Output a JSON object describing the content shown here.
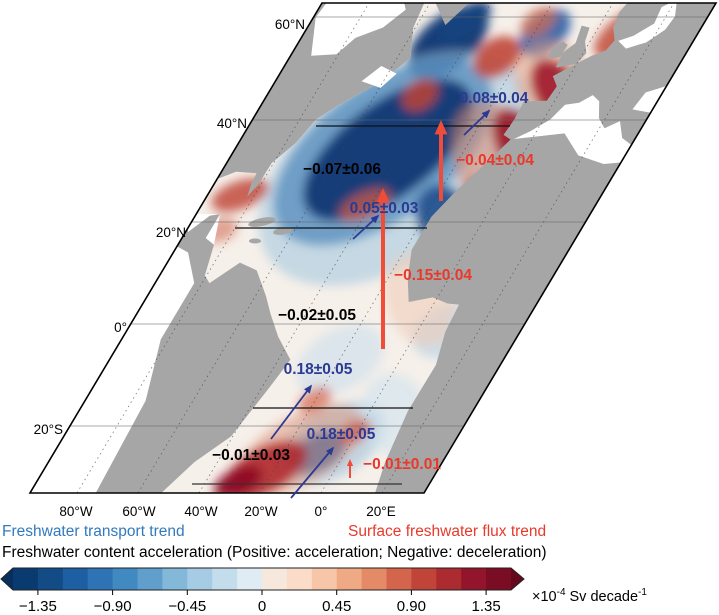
{
  "figure": {
    "lat_labels": [
      "60°N",
      "40°N",
      "20°N",
      "0°",
      "20°S"
    ],
    "lon_labels": [
      "80°W",
      "60°W",
      "40°W",
      "20°W",
      "0°",
      "20°E"
    ]
  },
  "annotations": {
    "transport": {
      "color": "#2b3a92",
      "arrow_color": "#2b3a92",
      "items": [
        {
          "text": "0.08±0.04"
        },
        {
          "text": "0.05±0.03"
        },
        {
          "text": "0.18±0.05"
        },
        {
          "text": "0.18±0.05"
        }
      ]
    },
    "flux": {
      "color": "#e8392b",
      "arrow_color": "#f04c38",
      "items": [
        {
          "text": "−0.04±0.04"
        },
        {
          "text": "−0.15±0.04"
        },
        {
          "text": "−0.01±0.01"
        }
      ]
    },
    "acceleration": {
      "color": "#000000",
      "items": [
        {
          "text": "−0.07±0.06"
        },
        {
          "text": "−0.02±0.05"
        },
        {
          "text": "−0.01±0.03"
        }
      ]
    }
  },
  "legend": {
    "transport_label": {
      "text": "Freshwater transport trend",
      "color": "#3279bd"
    },
    "flux_label": {
      "text": "Surface freshwater flux trend",
      "color": "#e8392b"
    },
    "acceleration_label": {
      "text": "Freshwater content acceleration (Positive: acceleration; Negative: deceleration)",
      "color": "#000000"
    }
  },
  "colorbar": {
    "tick_labels": [
      "−1.35",
      "−0.90",
      "−0.45",
      "0",
      "0.45",
      "0.90",
      "1.35"
    ],
    "tick_values": [
      -1.35,
      -0.9,
      -0.45,
      0,
      0.45,
      0.9,
      1.35
    ],
    "range": [
      -1.5,
      1.5
    ],
    "unit": {
      "prefix": "×10",
      "exponent": "-4",
      "middle": "Sv decade",
      "exponent2": "-1"
    },
    "segment_colors": [
      "#0a3b70",
      "#134b87",
      "#1d5fa2",
      "#2e74b5",
      "#4189c1",
      "#609fcc",
      "#83b8d9",
      "#a5cce4",
      "#c4ddec",
      "#e0ecf3",
      "#f6e8dd",
      "#fadcc8",
      "#f7c5a8",
      "#f0a985",
      "#e58a66",
      "#d4654d",
      "#c14438",
      "#ab2b30",
      "#93152c",
      "#7a0c24"
    ],
    "tip_colors": [
      "#082f5c",
      "#650a1e"
    ]
  },
  "colors": {
    "land": "#a6a6a6",
    "no_data_sea": "#ffffff",
    "map_border": "#000000"
  },
  "chart_data": {
    "type": "heatmap",
    "title": "Freshwater content acceleration (Positive: acceleration; Negative: deceleration)",
    "legend": [
      "Freshwater transport trend",
      "Surface freshwater flux trend"
    ],
    "colorbar_ticks": [
      -1.35,
      -0.9,
      -0.45,
      0,
      0.45,
      0.9,
      1.35
    ],
    "colorbar_range": [
      -1.5,
      1.5
    ],
    "unit": "×10⁻⁴ Sv decade⁻¹",
    "x_ticks": [
      "80°W",
      "60°W",
      "40°W",
      "20°W",
      "0°",
      "20°E"
    ],
    "y_ticks": [
      "60°N",
      "40°N",
      "20°N",
      "0°",
      "20°S"
    ],
    "transport_trend_values": [
      "0.08±0.04",
      "0.05±0.03",
      "0.18±0.05",
      "0.18±0.05"
    ],
    "surface_flux_trend_values": [
      "−0.04±0.04",
      "−0.15±0.04",
      "−0.01±0.01"
    ],
    "content_acceleration_values": [
      "−0.07±0.06",
      "−0.02±0.05",
      "−0.01±0.03"
    ]
  }
}
